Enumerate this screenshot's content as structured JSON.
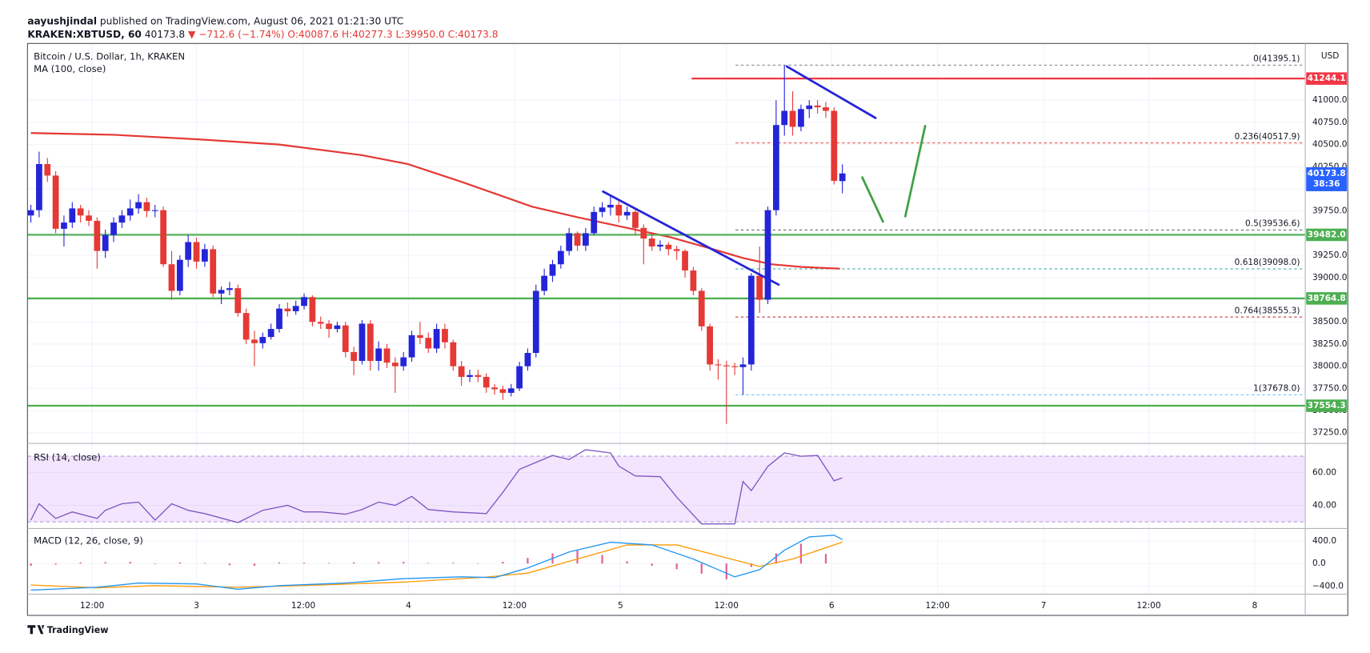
{
  "header": {
    "user": "aayushjindal",
    "published": "published on TradingView.com, August 06, 2021 01:21:30 UTC",
    "symbol": "KRAKEN:XBTUSD, 60",
    "last": "40173.8",
    "change": "▼ −712.6 (−1.74%)",
    "ohlc": "O:40087.6 H:40277.3 L:39950.0 C:40173.8"
  },
  "footer": "TradingView",
  "chart_data": {
    "type": "candlestick",
    "title": "Bitcoin / U.S. Dollar, 1h, KRAKEN",
    "currency": "USD",
    "xlim": [
      -0.3,
      153.9
    ],
    "xticks": [
      {
        "value": 7.4,
        "label": "12:00"
      },
      {
        "value": 20.0,
        "label": "3"
      },
      {
        "value": 32.9,
        "label": "12:00"
      },
      {
        "value": 45.6,
        "label": "4"
      },
      {
        "value": 58.4,
        "label": "12:00"
      },
      {
        "value": 71.2,
        "label": "5"
      },
      {
        "value": 84.0,
        "label": "12:00"
      },
      {
        "value": 96.7,
        "label": "6"
      },
      {
        "value": 109.5,
        "label": "12:00"
      },
      {
        "value": 122.3,
        "label": "7"
      },
      {
        "value": 135.0,
        "label": "12:00"
      },
      {
        "value": 147.8,
        "label": "8"
      }
    ],
    "ylim": [
      37130,
      41640
    ],
    "yticks": [
      {
        "value": 37250,
        "label": "37250.0"
      },
      {
        "value": 37500,
        "label": "37500.0"
      },
      {
        "value": 37750,
        "label": "37750.0"
      },
      {
        "value": 38000,
        "label": "38000.0"
      },
      {
        "value": 38250,
        "label": "38250.0"
      },
      {
        "value": 38500,
        "label": "38500.0"
      },
      {
        "value": 38750,
        "label": "38750.0"
      },
      {
        "value": 39000,
        "label": "39000.0"
      },
      {
        "value": 39250,
        "label": "39250.0"
      },
      {
        "value": 39500,
        "label": "39500.0"
      },
      {
        "value": 39750,
        "label": "39750.0"
      },
      {
        "value": 40000,
        "label": "40000.0"
      },
      {
        "value": 40250,
        "label": "40250.0"
      },
      {
        "value": 40500,
        "label": "40500.0"
      },
      {
        "value": 40750,
        "label": "40750.0"
      },
      {
        "value": 41000,
        "label": "41000.0"
      }
    ],
    "grid": true,
    "x": [
      0,
      1,
      2,
      3,
      4,
      5,
      6,
      7,
      8,
      9,
      10,
      11,
      12,
      13,
      14,
      15,
      16,
      17,
      18,
      19,
      20,
      21,
      22,
      23,
      24,
      25,
      26,
      27,
      28,
      29,
      30,
      31,
      32,
      33,
      34,
      35,
      36,
      37,
      38,
      39,
      40,
      41,
      42,
      43,
      44,
      45,
      46,
      47,
      48,
      49,
      50,
      51,
      52,
      53,
      54,
      55,
      56,
      57,
      58,
      59,
      60,
      61,
      62,
      63,
      64,
      65,
      66,
      67,
      68,
      69,
      70,
      71,
      72,
      73,
      74,
      75,
      76,
      77,
      78,
      79,
      80,
      81,
      82,
      83,
      84,
      85,
      86,
      87,
      88,
      89,
      90,
      91,
      92,
      93,
      94,
      95,
      96,
      97,
      98
    ],
    "candles": {
      "up_color": "#2424d8",
      "down_color": "#e53935",
      "open": [
        39700,
        39760,
        40280,
        40150,
        39550,
        39620,
        39780,
        39700,
        39640,
        39300,
        39480,
        39620,
        39700,
        39780,
        39850,
        39750,
        39760,
        39150,
        38850,
        39200,
        39400,
        39180,
        39320,
        38820,
        38860,
        38880,
        38600,
        38300,
        38260,
        38330,
        38420,
        38650,
        38620,
        38680,
        38780,
        38500,
        38480,
        38420,
        38460,
        38160,
        38060,
        38480,
        38060,
        38200,
        38040,
        38000,
        38100,
        38350,
        38320,
        38200,
        38420,
        38270,
        38000,
        37880,
        37900,
        37880,
        37760,
        37740,
        37700,
        37750,
        38000,
        38150,
        38850,
        39020,
        39150,
        39300,
        39500,
        39360,
        39500,
        39740,
        39790,
        39820,
        39700,
        39740,
        39560,
        39440,
        39350,
        39370,
        39320,
        39300,
        39080,
        38850,
        38450,
        38020,
        38010,
        38000,
        37990,
        38020,
        39020,
        38750,
        39760,
        40720,
        40880,
        40700,
        40900,
        40940,
        40920,
        40880,
        40087.6
      ],
      "high": [
        39820,
        40420,
        40350,
        40200,
        39700,
        39850,
        39820,
        39760,
        39680,
        39540,
        39680,
        39760,
        39880,
        39940,
        39900,
        39820,
        39800,
        39300,
        39250,
        39480,
        39450,
        39380,
        39360,
        38900,
        38950,
        38920,
        38650,
        38400,
        38380,
        38480,
        38700,
        38720,
        38740,
        38820,
        38800,
        38560,
        38520,
        38500,
        38500,
        38220,
        38520,
        38520,
        38280,
        38250,
        38100,
        38160,
        38400,
        38500,
        38380,
        38480,
        38480,
        38300,
        38060,
        37960,
        37960,
        37920,
        37800,
        37780,
        37800,
        38050,
        38200,
        38920,
        39100,
        39200,
        39360,
        39560,
        39520,
        39560,
        39800,
        39850,
        39920,
        39860,
        39800,
        39780,
        39600,
        39500,
        39420,
        39400,
        39360,
        39320,
        39120,
        38880,
        38480,
        38080,
        38060,
        38040,
        38100,
        39050,
        39350,
        39800,
        41000,
        41395,
        41100,
        40950,
        41000,
        41000,
        40980,
        40920,
        40277.3
      ],
      "low": [
        39620,
        39680,
        40080,
        39500,
        39350,
        39560,
        39620,
        39580,
        39100,
        39220,
        39400,
        39560,
        39640,
        39720,
        39680,
        39680,
        39120,
        38750,
        38800,
        39120,
        39100,
        39120,
        38780,
        38700,
        38800,
        38560,
        38250,
        38000,
        38200,
        38300,
        38380,
        38560,
        38580,
        38640,
        38450,
        38420,
        38320,
        38380,
        38100,
        37900,
        38020,
        37950,
        37950,
        37980,
        37700,
        37950,
        38050,
        38250,
        38150,
        38150,
        38200,
        37950,
        37780,
        37820,
        37820,
        37700,
        37680,
        37620,
        37660,
        37720,
        37950,
        38100,
        38800,
        38950,
        39100,
        39250,
        39300,
        39300,
        39480,
        39680,
        39700,
        39620,
        39650,
        39480,
        39150,
        39300,
        39300,
        39250,
        39200,
        39000,
        38800,
        38400,
        37950,
        37850,
        37350,
        37900,
        37678,
        37950,
        38600,
        38700,
        39700,
        40600,
        40600,
        40650,
        40800,
        40850,
        40800,
        40050,
        39950.0
      ],
      "close": [
        39760,
        40280,
        40150,
        39550,
        39620,
        39780,
        39700,
        39640,
        39300,
        39480,
        39620,
        39700,
        39780,
        39850,
        39750,
        39760,
        39150,
        38850,
        39200,
        39400,
        39180,
        39320,
        38820,
        38860,
        38880,
        38600,
        38300,
        38260,
        38330,
        38420,
        38650,
        38620,
        38680,
        38780,
        38500,
        38480,
        38420,
        38460,
        38160,
        38060,
        38480,
        38060,
        38200,
        38040,
        38000,
        38100,
        38350,
        38320,
        38200,
        38420,
        38270,
        38000,
        37880,
        37900,
        37880,
        37760,
        37740,
        37700,
        37750,
        38000,
        38150,
        38850,
        39020,
        39150,
        39300,
        39500,
        39360,
        39500,
        39740,
        39790,
        39820,
        39700,
        39740,
        39560,
        39440,
        39350,
        39370,
        39320,
        39300,
        39080,
        38850,
        38450,
        38020,
        38010,
        38000,
        37990,
        38020,
        39020,
        38750,
        39760,
        40720,
        40880,
        40700,
        40900,
        40940,
        40920,
        40880,
        40090,
        40173.8
      ]
    },
    "ma": {
      "label": "MA (100, close)",
      "color": "#e53935",
      "x": [
        0,
        10,
        20,
        30,
        40,
        45.5,
        52,
        60.5,
        66,
        71,
        77,
        82,
        86,
        89.4,
        93,
        97.7
      ],
      "values": [
        40630,
        40610,
        40560,
        40500,
        40380,
        40280,
        40080,
        39800,
        39680,
        39580,
        39460,
        39330,
        39220,
        39150,
        39120,
        39100
      ]
    },
    "last": {
      "value": 40173.8,
      "timer": "38:36",
      "color": "#2962ff"
    },
    "levels": [
      {
        "value": 41244.1,
        "label": "41244.1",
        "color": "#f23645",
        "start": 79.8
      },
      {
        "value": 39482.0,
        "label": "39482.0",
        "color": "#4caf50"
      },
      {
        "value": 38764.8,
        "label": "38764.8",
        "color": "#4caf50"
      },
      {
        "value": 37554.3,
        "label": "37554.3",
        "color": "#4caf50"
      }
    ],
    "fib": [
      {
        "value": 41395.1,
        "text": "0(41395.1)",
        "color": "#787b86",
        "start": 85.1
      },
      {
        "value": 40517.9,
        "text": "0.236(40517.9)",
        "color": "#e53935",
        "start": 85.1
      },
      {
        "value": 39536.6,
        "text": "0.5(39536.6)",
        "color": "#555555",
        "start": 85.1
      },
      {
        "value": 39098.0,
        "text": "0.618(39098.0)",
        "color": "#26a69a",
        "start": 85.1
      },
      {
        "value": 38555.3,
        "text": "0.764(38555.3)",
        "color": "#b71c1c",
        "start": 85.1
      },
      {
        "value": 37678.0,
        "text": "1(37678.0)",
        "color": "#64b5f6",
        "start": 85.1
      }
    ],
    "drawings": [
      {
        "color": "#2424d8",
        "points": [
          [
            69.1,
            39970
          ],
          [
            90.3,
            38920
          ]
        ]
      },
      {
        "color": "#2424d8",
        "points": [
          [
            91.3,
            41380
          ],
          [
            102.0,
            40800
          ]
        ]
      },
      {
        "color": "#43a047",
        "points": [
          [
            100.4,
            40130
          ],
          [
            102.9,
            39630
          ]
        ]
      },
      {
        "color": "#43a047",
        "points": [
          [
            105.6,
            39690
          ],
          [
            108.0,
            40710
          ]
        ]
      }
    ],
    "rsi": {
      "label": "RSI (14, close)",
      "color": "#7e57c2",
      "band": [
        30,
        70
      ],
      "ylim": [
        25.9,
        77.3
      ],
      "yticks": [
        {
          "value": 40,
          "label": "40.00"
        },
        {
          "value": 60,
          "label": "60.00"
        }
      ],
      "x": [
        0,
        1,
        3,
        5,
        8,
        9,
        11,
        13,
        15,
        17,
        19,
        21,
        25,
        28,
        31,
        33,
        35,
        38,
        40,
        42,
        44,
        46,
        48,
        51,
        55,
        57,
        59,
        63,
        65,
        67,
        70,
        71,
        73,
        76,
        78,
        81,
        85,
        86,
        87,
        89,
        91,
        93,
        95,
        97,
        98
      ],
      "values": [
        31,
        41,
        32,
        36,
        32,
        37,
        41,
        42,
        31,
        41,
        37,
        35,
        29.5,
        37,
        40,
        36,
        36,
        34.6,
        37.5,
        42,
        40,
        45.5,
        37.5,
        36,
        35,
        48,
        62,
        70.5,
        68,
        74,
        72,
        64,
        58,
        57.5,
        45,
        28.7,
        28.7,
        54.6,
        49,
        63.8,
        72,
        70,
        70.5,
        55,
        56.8
      ]
    },
    "macd": {
      "label": "MACD (12, 26, close, 9)",
      "ylim": [
        -541,
        604
      ],
      "yticks": [
        {
          "value": 400,
          "label": "400.0"
        },
        {
          "value": 0,
          "label": "0.0"
        },
        {
          "value": -400,
          "label": "−400.0"
        }
      ],
      "macd_color": "#2196f3",
      "signal_color": "#ff9800",
      "hist_color": "#e0609a",
      "macd_x": [
        0,
        8,
        13,
        20,
        25,
        30,
        38,
        45,
        52,
        56,
        60,
        65,
        70,
        75,
        80,
        85,
        88,
        91,
        94,
        97,
        98
      ],
      "macd_values": [
        -470,
        -420,
        -345,
        -360,
        -455,
        -390,
        -345,
        -267,
        -235,
        -250,
        -78,
        204,
        376,
        330,
        78,
        -235,
        -110,
        235,
        470,
        500,
        425
      ],
      "signal_x": [
        0,
        8,
        15,
        25,
        35,
        45,
        55,
        60,
        66,
        72,
        78,
        84,
        88,
        92,
        98
      ],
      "signal_values": [
        -380,
        -430,
        -390,
        -420,
        -380,
        -330,
        -240,
        -170,
        80,
        330,
        330,
        100,
        -50,
        80,
        380
      ],
      "hist_x": [
        0,
        3,
        6,
        9,
        12,
        15,
        18,
        21,
        24,
        27,
        30,
        33,
        36,
        39,
        42,
        45,
        48,
        51,
        54,
        57,
        60,
        63,
        66,
        69,
        72,
        75,
        78,
        81,
        84,
        87,
        90,
        93,
        96
      ],
      "hist_values": [
        -40,
        -20,
        20,
        25,
        30,
        -10,
        20,
        10,
        -30,
        -40,
        20,
        15,
        10,
        20,
        25,
        30,
        10,
        15,
        5,
        30,
        100,
        180,
        230,
        150,
        40,
        -40,
        -100,
        -180,
        -280,
        -60,
        180,
        350,
        170
      ]
    }
  }
}
